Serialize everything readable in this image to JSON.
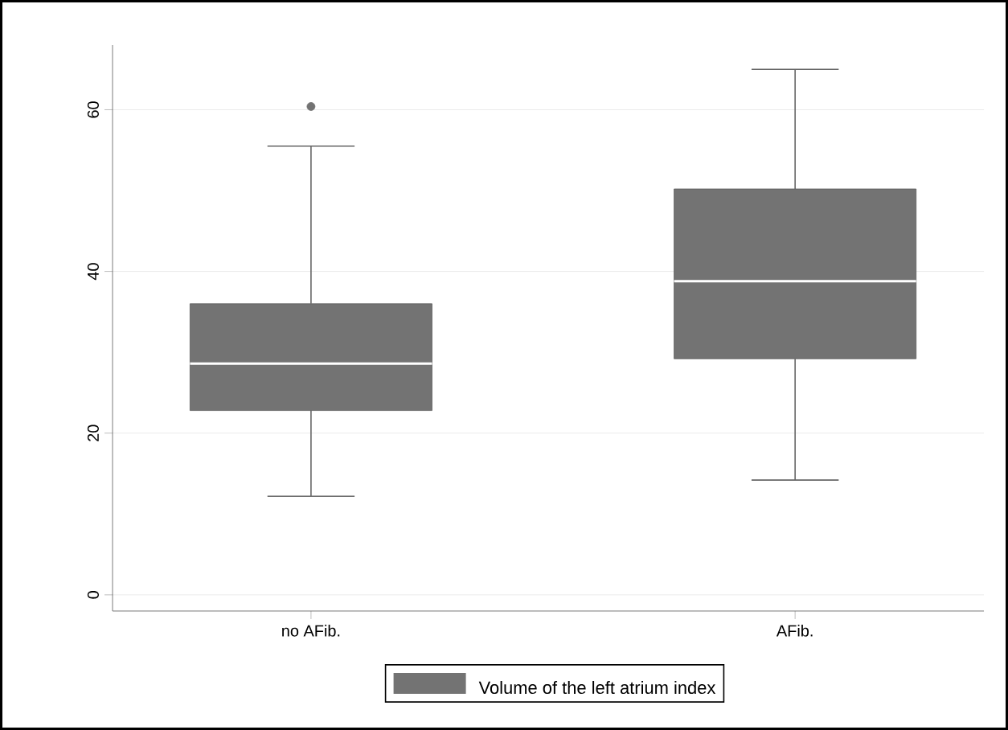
{
  "chart_data": {
    "type": "box",
    "categories": [
      "no AFib.",
      "AFib."
    ],
    "series": [
      {
        "name": "Volume of the left atrium index",
        "color": "#737373",
        "boxes": [
          {
            "low": 12.2,
            "q1": 22.8,
            "median": 28.6,
            "q3": 36,
            "high": 55.5,
            "outliers": [
              60.4
            ]
          },
          {
            "low": 14.2,
            "q1": 29.2,
            "median": 38.8,
            "q3": 50.2,
            "high": 65
          }
        ]
      }
    ],
    "ylim": [
      -2,
      68
    ],
    "yticks": [
      0,
      20,
      40,
      60
    ],
    "grid": "y",
    "legend": "bottom"
  }
}
